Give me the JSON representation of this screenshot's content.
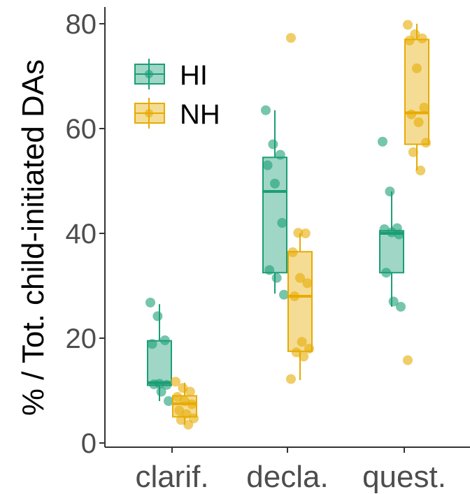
{
  "chart_data": {
    "type": "boxplot",
    "title": "",
    "xlabel": "",
    "ylabel": "% / Tot. child-initiated DAs",
    "ylim": [
      0,
      82
    ],
    "yticks": [
      0,
      20,
      40,
      60,
      80
    ],
    "categories": [
      "clarif.",
      "decla.",
      "quest."
    ],
    "grid": false,
    "legend_position": "top-left",
    "series": [
      {
        "name": "HI",
        "color": "#1b9e77",
        "boxes": [
          {
            "category": "clarif.",
            "whisker_low": 8,
            "q1": 11,
            "median": 11.5,
            "q3": 19.5,
            "whisker_high": 26.5
          },
          {
            "category": "decla.",
            "whisker_low": 28.5,
            "q1": 32.5,
            "median": 48,
            "q3": 54.5,
            "whisker_high": 63.5
          },
          {
            "category": "quest.",
            "whisker_low": 26,
            "q1": 32.5,
            "median": 40,
            "q3": 40.5,
            "whisker_high": 48
          }
        ],
        "points": [
          {
            "category": "clarif.",
            "values": [
              26.8,
              24.2,
              19.6,
              18.9,
              11.3,
              11.1,
              11.2,
              9.8,
              8.0
            ]
          },
          {
            "category": "decla.",
            "values": [
              63.5,
              57.0,
              55.0,
              53.0,
              49.5,
              42.0,
              33.0,
              31.5,
              28.3
            ]
          },
          {
            "category": "quest.",
            "values": [
              57.5,
              48.0,
              41.0,
              40.8,
              40.2,
              39.8,
              32.5,
              27.0,
              26.0
            ]
          }
        ]
      },
      {
        "name": "NH",
        "color": "#e6ab02",
        "boxes": [
          {
            "category": "clarif.",
            "whisker_low": 3.5,
            "q1": 5,
            "median": 7.5,
            "q3": 9,
            "whisker_high": 11.5
          },
          {
            "category": "decla.",
            "whisker_low": 12,
            "q1": 17.5,
            "median": 28,
            "q3": 36.5,
            "whisker_high": 40
          },
          {
            "category": "quest.",
            "whisker_low": 52,
            "q1": 57,
            "median": 63,
            "q3": 77,
            "whisker_high": 80
          }
        ],
        "points": [
          {
            "category": "clarif.",
            "values": [
              11.7,
              10.5,
              9.8,
              8.8,
              8.0,
              7.4,
              6.2,
              5.5,
              4.7,
              4.4,
              3.5
            ]
          },
          {
            "category": "decla.",
            "values": [
              77.3,
              40.1,
              40.0,
              36.4,
              31.5,
              30.5,
              28.0,
              19.3,
              18.0,
              17.3,
              16.5,
              12.2
            ]
          },
          {
            "category": "quest.",
            "values": [
              79.8,
              78.0,
              77.2,
              76.8,
              71.5,
              64.0,
              62.7,
              61.2,
              57.3,
              55.5,
              52.0,
              15.8
            ]
          }
        ]
      }
    ]
  }
}
